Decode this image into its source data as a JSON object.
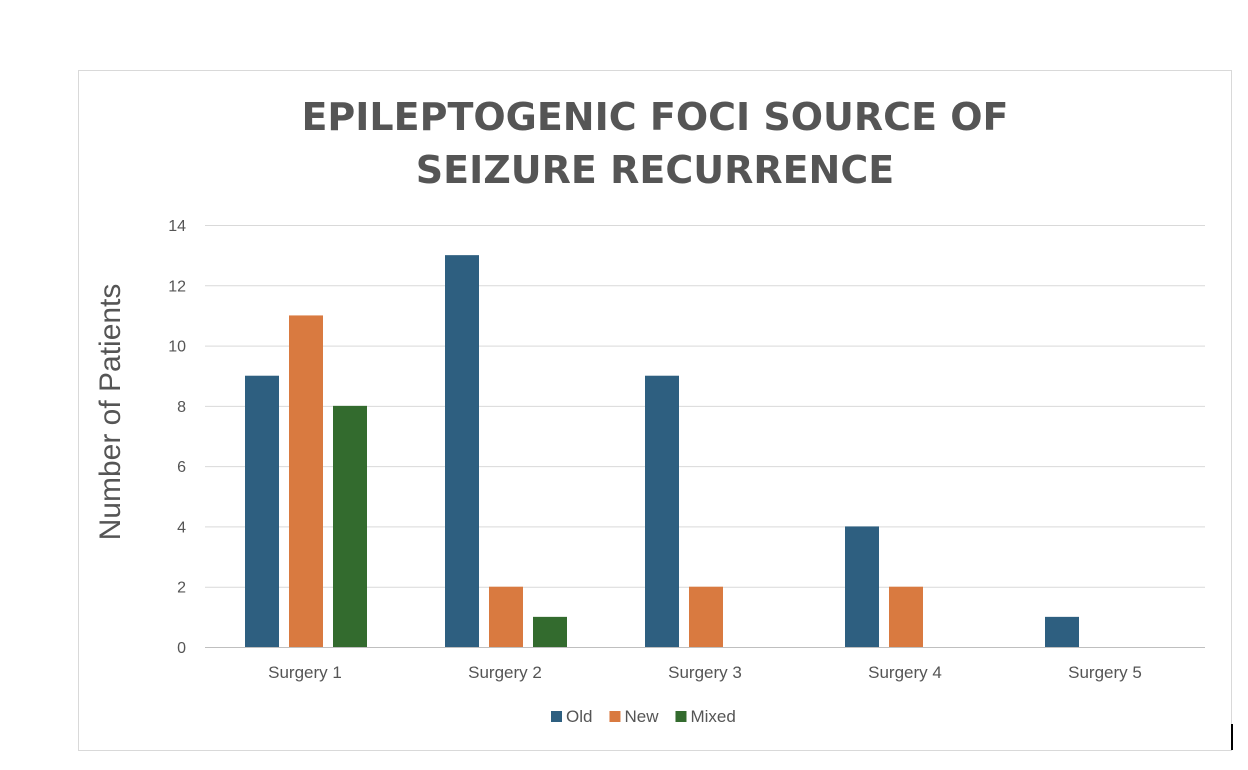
{
  "chart_data": {
    "type": "bar",
    "title_lines": [
      "EPILEPTOGENIC FOCI SOURCE OF",
      "SEIZURE RECURRENCE"
    ],
    "xlabel": "",
    "ylabel": "Number of Patients",
    "ylim": [
      0,
      14
    ],
    "yticks": [
      0,
      2,
      4,
      6,
      8,
      10,
      12,
      14
    ],
    "grid": true,
    "legend_position": "bottom",
    "categories": [
      "Surgery 1",
      "Surgery 2",
      "Surgery 3",
      "Surgery 4",
      "Surgery 5"
    ],
    "series": [
      {
        "name": "Old",
        "color": "#2e5f80",
        "values": [
          9,
          13,
          9,
          4,
          1
        ]
      },
      {
        "name": "New",
        "color": "#d97a40",
        "values": [
          11,
          2,
          2,
          2,
          0
        ]
      },
      {
        "name": "Mixed",
        "color": "#336b2e",
        "values": [
          8,
          1,
          0,
          0,
          0
        ]
      }
    ]
  }
}
